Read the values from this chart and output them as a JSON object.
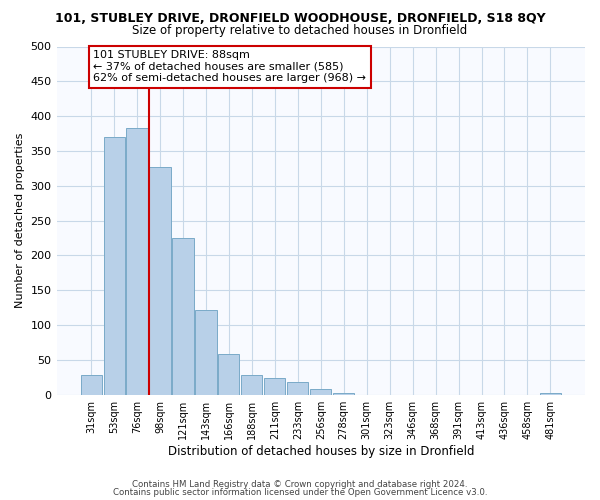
{
  "title": "101, STUBLEY DRIVE, DRONFIELD WOODHOUSE, DRONFIELD, S18 8QY",
  "subtitle": "Size of property relative to detached houses in Dronfield",
  "xlabel": "Distribution of detached houses by size in Dronfield",
  "ylabel": "Number of detached properties",
  "bar_labels": [
    "31sqm",
    "53sqm",
    "76sqm",
    "98sqm",
    "121sqm",
    "143sqm",
    "166sqm",
    "188sqm",
    "211sqm",
    "233sqm",
    "256sqm",
    "278sqm",
    "301sqm",
    "323sqm",
    "346sqm",
    "368sqm",
    "391sqm",
    "413sqm",
    "436sqm",
    "458sqm",
    "481sqm"
  ],
  "bar_values": [
    28,
    370,
    383,
    327,
    225,
    121,
    59,
    28,
    24,
    18,
    8,
    2,
    0,
    0,
    0,
    0,
    0,
    0,
    0,
    0,
    2
  ],
  "bar_color": "#b8d0e8",
  "bar_edge_color": "#7aaac8",
  "vline_color": "#cc0000",
  "vline_bar_index": 2.5,
  "annotation_title": "101 STUBLEY DRIVE: 88sqm",
  "annotation_line1": "← 37% of detached houses are smaller (585)",
  "annotation_line2": "62% of semi-detached houses are larger (968) →",
  "annotation_box_color": "#ffffff",
  "annotation_box_edge": "#cc0000",
  "ylim": [
    0,
    500
  ],
  "yticks": [
    0,
    50,
    100,
    150,
    200,
    250,
    300,
    350,
    400,
    450,
    500
  ],
  "grid_color": "#c8d8e8",
  "footer1": "Contains HM Land Registry data © Crown copyright and database right 2024.",
  "footer2": "Contains public sector information licensed under the Open Government Licence v3.0."
}
